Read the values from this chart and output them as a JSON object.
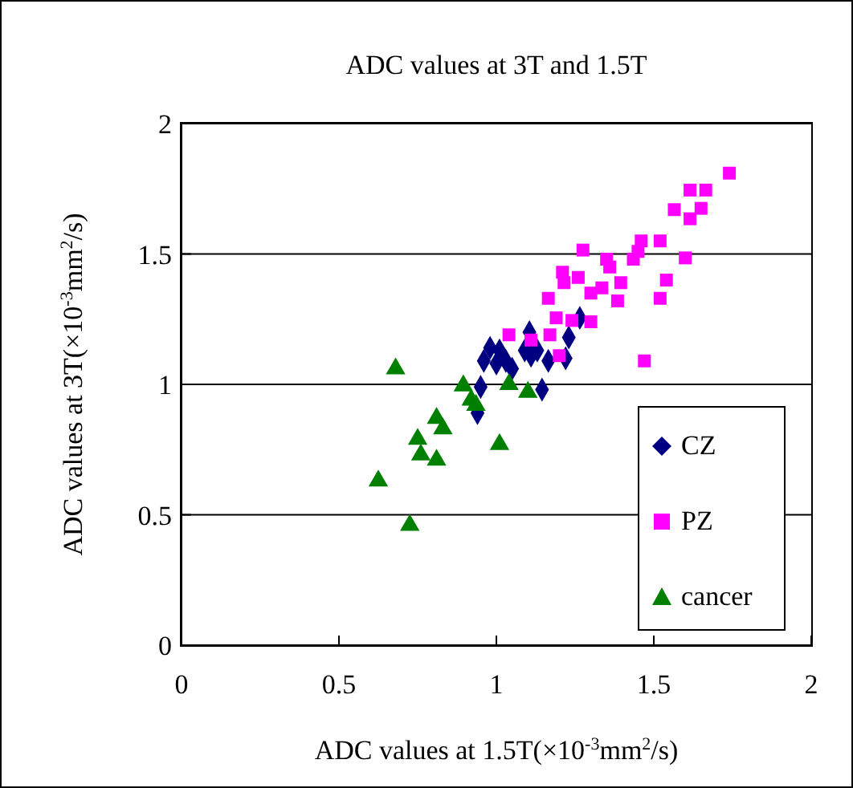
{
  "chart_data": {
    "type": "scatter",
    "title": "ADC values at 3T and 1.5T",
    "xlabel": "ADC values at 1.5T(×10$^{-3}$mm$^{2}$/s)",
    "ylabel": "ADC values at 3T(×10$^{-3}$mm$^{2}$/s)",
    "xlim": [
      0,
      2
    ],
    "xticks": [
      0,
      0.5,
      1,
      1.5,
      2
    ],
    "ylim": [
      0,
      2
    ],
    "yticks": [
      0,
      0.5,
      1,
      1.5,
      2
    ],
    "grid": "y",
    "legend": "bottom right",
    "series": [
      {
        "name": "CZ",
        "color": "#000080",
        "marker": "diamond",
        "x": [
          0.95,
          0.94,
          0.98,
          0.96,
          1.0,
          1.03,
          1.05,
          1.105,
          1.13,
          1.165,
          1.145,
          1.22,
          1.23,
          1.265,
          1.01,
          1.09,
          1.11
        ],
        "values": [
          0.99,
          0.89,
          1.14,
          1.09,
          1.08,
          1.09,
          1.06,
          1.2,
          1.13,
          1.09,
          0.98,
          1.1,
          1.18,
          1.255,
          1.13,
          1.13,
          1.11
        ]
      },
      {
        "name": "PZ",
        "color": "#ff00ff",
        "marker": "square",
        "x": [
          1.74,
          1.615,
          1.665,
          1.565,
          1.65,
          1.615,
          1.275,
          1.35,
          1.46,
          1.52,
          1.45,
          1.435,
          1.6,
          1.36,
          1.21,
          1.26,
          1.215,
          1.54,
          1.335,
          1.395,
          1.3,
          1.385,
          1.165,
          1.52,
          1.19,
          1.24,
          1.3,
          1.17,
          1.04,
          1.11,
          1.2,
          1.47
        ],
        "values": [
          1.81,
          1.745,
          1.745,
          1.67,
          1.675,
          1.635,
          1.515,
          1.48,
          1.55,
          1.55,
          1.51,
          1.48,
          1.485,
          1.45,
          1.43,
          1.41,
          1.39,
          1.4,
          1.37,
          1.39,
          1.35,
          1.32,
          1.33,
          1.33,
          1.255,
          1.245,
          1.24,
          1.19,
          1.19,
          1.17,
          1.11,
          1.09
        ]
      },
      {
        "name": "cancer",
        "color": "#008000",
        "marker": "triangle",
        "x": [
          0.68,
          0.625,
          0.725,
          0.75,
          0.76,
          0.81,
          0.83,
          0.81,
          0.895,
          0.92,
          0.935,
          1.01,
          1.04,
          1.1
        ],
        "values": [
          1.06,
          0.63,
          0.46,
          0.79,
          0.73,
          0.87,
          0.83,
          0.71,
          0.995,
          0.94,
          0.92,
          0.77,
          1.0,
          0.97
        ]
      }
    ]
  }
}
